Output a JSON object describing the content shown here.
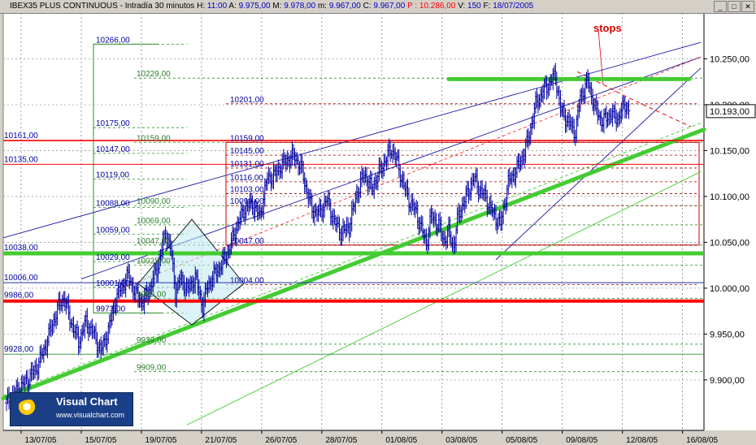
{
  "header": {
    "symbol": "IBEX35 PLUS CONTINUOUS",
    "interval": "Intradía 30 minutos",
    "h_label": "H:",
    "h_value": "11:00",
    "a_label": "A:",
    "a_value": "9.975,00",
    "m_label": "M:",
    "m_value": "9.978,00",
    "mlow_label": "m:",
    "mlow_value": "9.967,00",
    "c_label": "C:",
    "c_value": "9.967,00",
    "p_label": "P :",
    "p_value": "10.286,00",
    "v_label": "V:",
    "v_value": "150",
    "f_label": "F:",
    "f_value": "18/07/2005"
  },
  "window_buttons": {
    "minimize": "_",
    "restore": "□",
    "close": "✕"
  },
  "logo": {
    "name": "Visual Chart",
    "url": "www.visualchart.com"
  },
  "colors": {
    "background": "#ffffff",
    "frame": "#d4d0c8",
    "price": "#0000a0",
    "trend_green": "#44cc33",
    "support_red": "#ff0000",
    "channel_blue": "#1a1aa8",
    "fib_green": "#2f8f2f",
    "stops_label": "#dd0000"
  },
  "annotations": {
    "stops": "stops",
    "last_price": "10.193,00"
  },
  "chart_data": {
    "type": "candlestick",
    "title": "IBEX35 PLUS CONTINUOUS",
    "ylim": [
      9845,
      10300
    ],
    "y_ticks": [
      "9.900,00",
      "9.950,00",
      "10.000,00",
      "10.050,00",
      "10.100,00",
      "10.150,00",
      "10.200,00",
      "10.250,00"
    ],
    "y_tick_values": [
      9900,
      9950,
      10000,
      10050,
      10100,
      10150,
      10200,
      10250
    ],
    "x_tick_labels": [
      "13/07/05",
      "15/07/05",
      "19/07/05",
      "21/07/05",
      "26/07/05",
      "28/07/05",
      "01/08/05",
      "03/08/05",
      "05/08/05",
      "09/08/05",
      "12/08/05",
      "16/08/05"
    ],
    "last_price": 10193,
    "horizontal_levels": [
      {
        "label": "10161,00",
        "value": 10161,
        "style": "red"
      },
      {
        "label": "10135,00",
        "value": 10135,
        "style": "red-thin"
      },
      {
        "label": "10038,00",
        "value": 10038,
        "style": "green-thick"
      },
      {
        "label": "10006,00",
        "value": 10006,
        "style": "blue-thin"
      },
      {
        "label": "9986,00",
        "value": 9986,
        "style": "red-thick"
      },
      {
        "label": "9928,00",
        "value": 9928,
        "style": "green-thin"
      }
    ],
    "fib_left_labels": [
      "10266,00",
      "10175,00",
      "10147,00",
      "10119,00",
      "10088,00",
      "10059,00",
      "10029,00",
      "10001,00",
      "9973,00"
    ],
    "fib_left_values": [
      10266,
      10175,
      10147,
      10119,
      10088,
      10059,
      10029,
      10001,
      9973
    ],
    "fib_mid_labels": [
      "10229,00",
      "10159,00",
      "10090,00",
      "10069,00",
      "10047,00",
      "10025,00",
      "9989,00",
      "9939,00",
      "9909,00"
    ],
    "fib_mid_values": [
      10229,
      10159,
      10090,
      10069,
      10047,
      10025,
      9989,
      9939,
      9909
    ],
    "fib_right_labels": [
      "10201,00",
      "10159,00",
      "10145,00",
      "10131,00",
      "10116,00",
      "10103,00",
      "10090,00",
      "10047,00",
      "10004,00"
    ],
    "fib_right_values": [
      10201,
      10159,
      10145,
      10131,
      10116,
      10103,
      10090,
      10047,
      10004
    ],
    "resistance_level": 10228,
    "price_path": [
      [
        0,
        9875
      ],
      [
        6,
        9884
      ],
      [
        12,
        9893
      ],
      [
        18,
        9902
      ],
      [
        24,
        9913
      ],
      [
        30,
        9932
      ],
      [
        36,
        9957
      ],
      [
        42,
        9980
      ],
      [
        46,
        9990
      ],
      [
        52,
        9963
      ],
      [
        58,
        9942
      ],
      [
        64,
        9963
      ],
      [
        70,
        9951
      ],
      [
        76,
        9931
      ],
      [
        82,
        9954
      ],
      [
        88,
        9989
      ],
      [
        94,
        10004
      ],
      [
        98,
        10014
      ],
      [
        104,
        9993
      ],
      [
        110,
        9985
      ],
      [
        116,
        10002
      ],
      [
        122,
        10025
      ],
      [
        128,
        10060
      ],
      [
        132,
        10045
      ],
      [
        136,
        9996
      ],
      [
        140,
        10010
      ],
      [
        146,
        9998
      ],
      [
        152,
        10012
      ],
      [
        158,
        9980
      ],
      [
        162,
        10003
      ],
      [
        168,
        10016
      ],
      [
        174,
        10028
      ],
      [
        180,
        10045
      ],
      [
        186,
        10070
      ],
      [
        192,
        10087
      ],
      [
        198,
        10092
      ],
      [
        204,
        10078
      ],
      [
        210,
        10120
      ],
      [
        216,
        10123
      ],
      [
        220,
        10132
      ],
      [
        226,
        10140
      ],
      [
        232,
        10144
      ],
      [
        238,
        10128
      ],
      [
        242,
        10105
      ],
      [
        246,
        10085
      ],
      [
        252,
        10082
      ],
      [
        258,
        10096
      ],
      [
        264,
        10072
      ],
      [
        270,
        10060
      ],
      [
        276,
        10068
      ],
      [
        282,
        10103
      ],
      [
        288,
        10125
      ],
      [
        294,
        10108
      ],
      [
        298,
        10120
      ],
      [
        304,
        10137
      ],
      [
        310,
        10152
      ],
      [
        314,
        10140
      ],
      [
        318,
        10120
      ],
      [
        324,
        10096
      ],
      [
        330,
        10082
      ],
      [
        334,
        10065
      ],
      [
        338,
        10048
      ],
      [
        342,
        10079
      ],
      [
        348,
        10068
      ],
      [
        352,
        10052
      ],
      [
        356,
        10061
      ],
      [
        360,
        10045
      ],
      [
        364,
        10081
      ],
      [
        370,
        10099
      ],
      [
        376,
        10120
      ],
      [
        380,
        10110
      ],
      [
        386,
        10098
      ],
      [
        392,
        10080
      ],
      [
        398,
        10070
      ],
      [
        404,
        10115
      ],
      [
        410,
        10128
      ],
      [
        416,
        10145
      ],
      [
        420,
        10162
      ],
      [
        426,
        10200
      ],
      [
        432,
        10215
      ],
      [
        438,
        10225
      ],
      [
        442,
        10232
      ],
      [
        446,
        10195
      ],
      [
        452,
        10182
      ],
      [
        458,
        10170
      ],
      [
        462,
        10208
      ],
      [
        468,
        10226
      ],
      [
        474,
        10195
      ],
      [
        480,
        10181
      ],
      [
        486,
        10190
      ],
      [
        492,
        10185
      ],
      [
        498,
        10200
      ],
      [
        502,
        10193
      ]
    ]
  }
}
